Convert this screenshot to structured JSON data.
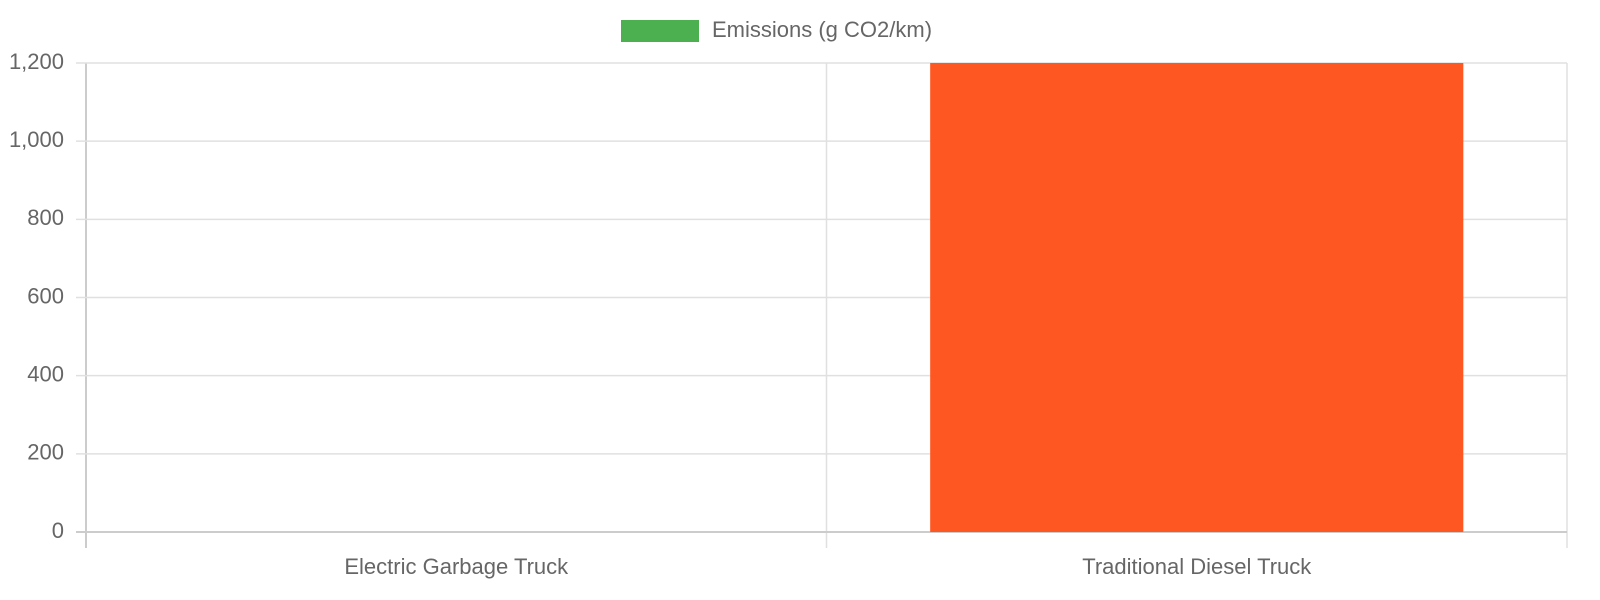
{
  "chart_data": {
    "type": "bar",
    "categories": [
      "Electric Garbage Truck",
      "Traditional Diesel Truck"
    ],
    "series": [
      {
        "name": "Emissions (g CO2/km)",
        "colors": [
          "#4caf50",
          "#ff5722"
        ],
        "values": [
          0,
          1200
        ]
      }
    ],
    "ylim": [
      0,
      1200
    ],
    "yticks": [
      0,
      200,
      400,
      600,
      800,
      {
        "value": 1000,
        "label": "1,000"
      },
      {
        "value": 1200,
        "label": "1,200"
      }
    ],
    "grid": true,
    "legend": "top"
  }
}
